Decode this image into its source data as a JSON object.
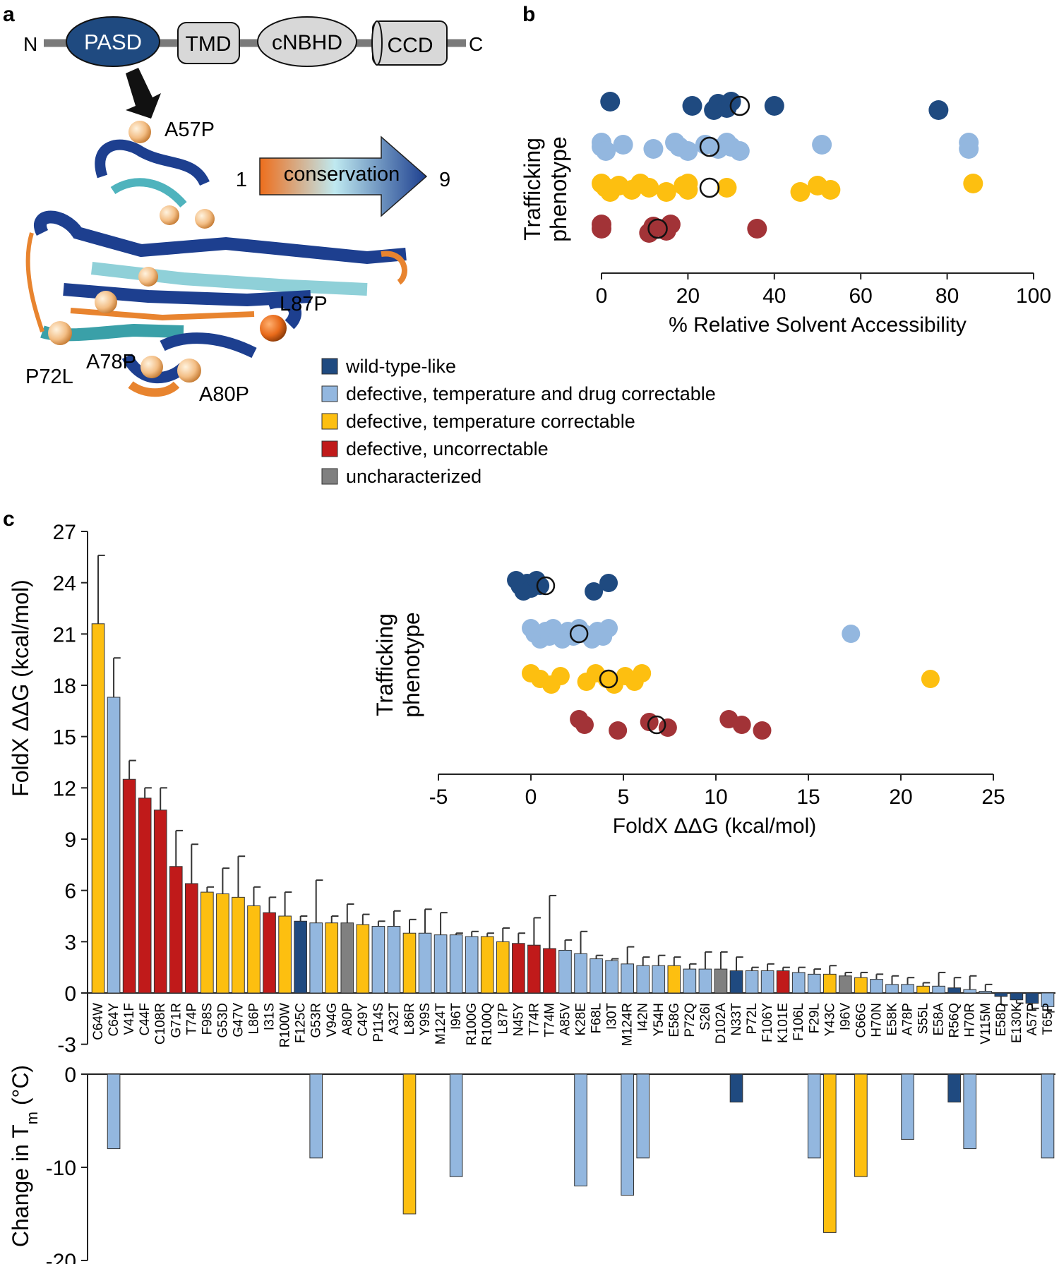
{
  "colors": {
    "wt": "#1f4a80",
    "dtc": "#93b7df",
    "tc": "#fdbf10",
    "unc": "#a23337",
    "uncorr_bar": "#c01a1a",
    "unchar": "#808080",
    "protein_fill": "#1d3f8f",
    "sphere": "#f4c089"
  },
  "panel_a": {
    "label": "a",
    "n_term": "N",
    "c_term": "C",
    "domains": [
      "PASD",
      "TMD",
      "cNBHD",
      "CCD"
    ],
    "sites": [
      "A57P",
      "L87P",
      "P72L",
      "A78P",
      "A80P"
    ],
    "scale_low": "1",
    "scale_high": "9",
    "scale_label": "conservation"
  },
  "panel_b": {
    "label": "b",
    "ylabel": [
      "Trafficking",
      "phenotype"
    ],
    "chart_data": {
      "type": "scatter",
      "xlabel": "% Relative Solvent Accessibility",
      "xlim": [
        0,
        100
      ],
      "xticks": [
        "0",
        "20",
        "40",
        "60",
        "80",
        "100"
      ],
      "series": [
        {
          "key": "wt",
          "values": [
            2,
            21,
            26,
            27,
            29,
            30,
            40,
            78
          ],
          "mean": 32
        },
        {
          "key": "dtc",
          "values": [
            0,
            0,
            1,
            5,
            12,
            17,
            18,
            20,
            24,
            27,
            29,
            30,
            32,
            51,
            85,
            85
          ],
          "mean": 25
        },
        {
          "key": "tc",
          "values": [
            0,
            1,
            2,
            4,
            7,
            9,
            11,
            15,
            19,
            20,
            20,
            29,
            46,
            50,
            53,
            86
          ],
          "mean": 25
        },
        {
          "key": "unc",
          "values": [
            0,
            0,
            11,
            12,
            15,
            16,
            36
          ],
          "mean": 13
        }
      ]
    }
  },
  "legend": [
    {
      "key": "wt",
      "label": "wild-type-like"
    },
    {
      "key": "dtc",
      "label": "defective, temperature and drug correctable"
    },
    {
      "key": "tc",
      "label": "defective, temperature correctable"
    },
    {
      "key": "uncorr_bar",
      "label": "defective, uncorrectable"
    },
    {
      "key": "unchar",
      "label": "uncharacterized"
    }
  ],
  "panel_c": {
    "label": "c",
    "ylabel": "FoldX ΔΔG (kcal/mol)",
    "yticks": [
      "27",
      "24",
      "21",
      "18",
      "15",
      "12",
      "9",
      "6",
      "3",
      "0",
      "-3"
    ],
    "tm_ylabel": "Change in T",
    "tm_sub": "m",
    "tm_unit": " (°C)",
    "tm_yticks": [
      "0",
      "-10",
      "-20"
    ],
    "chart_data": {
      "type": "bar",
      "ylim": [
        -3,
        27
      ],
      "tm_ylim": [
        -20,
        0
      ],
      "bars": [
        {
          "name": "C64W",
          "v": 21.6,
          "e": 4.0,
          "c": "tc"
        },
        {
          "name": "C64Y",
          "v": 17.3,
          "e": 2.3,
          "c": "dtc",
          "tm": -8
        },
        {
          "name": "V41F",
          "v": 12.5,
          "e": 1.1,
          "c": "uncorr_bar"
        },
        {
          "name": "C44F",
          "v": 11.4,
          "e": 0.6,
          "c": "uncorr_bar"
        },
        {
          "name": "C108R",
          "v": 10.7,
          "e": 1.3,
          "c": "uncorr_bar"
        },
        {
          "name": "G71R",
          "v": 7.4,
          "e": 2.1,
          "c": "uncorr_bar"
        },
        {
          "name": "T74P",
          "v": 6.4,
          "e": 2.3,
          "c": "uncorr_bar"
        },
        {
          "name": "F98S",
          "v": 5.9,
          "e": 0.3,
          "c": "tc"
        },
        {
          "name": "G53D",
          "v": 5.8,
          "e": 1.5,
          "c": "tc"
        },
        {
          "name": "G47V",
          "v": 5.6,
          "e": 2.4,
          "c": "tc"
        },
        {
          "name": "L86P",
          "v": 5.1,
          "e": 1.1,
          "c": "tc"
        },
        {
          "name": "I31S",
          "v": 4.7,
          "e": 0.9,
          "c": "uncorr_bar"
        },
        {
          "name": "R100W",
          "v": 4.5,
          "e": 1.4,
          "c": "tc"
        },
        {
          "name": "F125C",
          "v": 4.2,
          "e": 0.3,
          "c": "wt"
        },
        {
          "name": "G53R",
          "v": 4.1,
          "e": 2.5,
          "c": "dtc",
          "tm": -9
        },
        {
          "name": "V94G",
          "v": 4.1,
          "e": 0.4,
          "c": "tc"
        },
        {
          "name": "A80P",
          "v": 4.1,
          "e": 1.1,
          "c": "unchar"
        },
        {
          "name": "C49Y",
          "v": 4.0,
          "e": 0.6,
          "c": "tc"
        },
        {
          "name": "P114S",
          "v": 3.9,
          "e": 0.3,
          "c": "dtc"
        },
        {
          "name": "A32T",
          "v": 3.9,
          "e": 0.9,
          "c": "dtc"
        },
        {
          "name": "L86R",
          "v": 3.5,
          "e": 0.8,
          "c": "tc",
          "tm": -15
        },
        {
          "name": "Y99S",
          "v": 3.5,
          "e": 1.4,
          "c": "dtc"
        },
        {
          "name": "M124T",
          "v": 3.4,
          "e": 1.3,
          "c": "dtc"
        },
        {
          "name": "I96T",
          "v": 3.4,
          "e": 0.1,
          "c": "dtc",
          "tm": -11
        },
        {
          "name": "R100G",
          "v": 3.3,
          "e": 0.3,
          "c": "dtc"
        },
        {
          "name": "R100Q",
          "v": 3.3,
          "e": 0.2,
          "c": "tc"
        },
        {
          "name": "L87P",
          "v": 3.0,
          "e": 0.8,
          "c": "tc"
        },
        {
          "name": "N45Y",
          "v": 2.9,
          "e": 0.6,
          "c": "uncorr_bar"
        },
        {
          "name": "T74R",
          "v": 2.8,
          "e": 1.6,
          "c": "uncorr_bar"
        },
        {
          "name": "T74M",
          "v": 2.6,
          "e": 3.1,
          "c": "uncorr_bar"
        },
        {
          "name": "A85V",
          "v": 2.5,
          "e": 0.6,
          "c": "dtc"
        },
        {
          "name": "K28E",
          "v": 2.3,
          "e": 1.3,
          "c": "dtc",
          "tm": -12
        },
        {
          "name": "F68L",
          "v": 2.0,
          "e": 0.2,
          "c": "dtc"
        },
        {
          "name": "I30T",
          "v": 1.9,
          "e": 0.1,
          "c": "dtc"
        },
        {
          "name": "M124R",
          "v": 1.7,
          "e": 1.0,
          "c": "dtc",
          "tm": -13
        },
        {
          "name": "I42N",
          "v": 1.6,
          "e": 0.5,
          "c": "dtc",
          "tm": -9
        },
        {
          "name": "Y54H",
          "v": 1.6,
          "e": 0.6,
          "c": "dtc"
        },
        {
          "name": "E58G",
          "v": 1.6,
          "e": 0.5,
          "c": "tc"
        },
        {
          "name": "P72Q",
          "v": 1.4,
          "e": 0.3,
          "c": "dtc"
        },
        {
          "name": "S26I",
          "v": 1.4,
          "e": 1.0,
          "c": "dtc"
        },
        {
          "name": "D102A",
          "v": 1.4,
          "e": 1.0,
          "c": "unchar"
        },
        {
          "name": "N33T",
          "v": 1.3,
          "e": 0.8,
          "c": "wt",
          "tm": -3
        },
        {
          "name": "P72L",
          "v": 1.3,
          "e": 0.2,
          "c": "dtc"
        },
        {
          "name": "F106Y",
          "v": 1.3,
          "e": 0.4,
          "c": "dtc"
        },
        {
          "name": "K101E",
          "v": 1.3,
          "e": 0.2,
          "c": "uncorr_bar"
        },
        {
          "name": "F106L",
          "v": 1.2,
          "e": 0.3,
          "c": "dtc"
        },
        {
          "name": "F29L",
          "v": 1.1,
          "e": 0.3,
          "c": "dtc",
          "tm": -9
        },
        {
          "name": "Y43C",
          "v": 1.1,
          "e": 0.5,
          "c": "tc",
          "tm": -17
        },
        {
          "name": "I96V",
          "v": 1.0,
          "e": 0.2,
          "c": "unchar"
        },
        {
          "name": "C66G",
          "v": 0.9,
          "e": 0.3,
          "c": "tc",
          "tm": -11
        },
        {
          "name": "H70N",
          "v": 0.8,
          "e": 0.3,
          "c": "dtc"
        },
        {
          "name": "E58K",
          "v": 0.5,
          "e": 0.5,
          "c": "dtc"
        },
        {
          "name": "A78P",
          "v": 0.5,
          "e": 0.4,
          "c": "dtc",
          "tm": -7
        },
        {
          "name": "S55L",
          "v": 0.4,
          "e": 0.2,
          "c": "tc"
        },
        {
          "name": "E58A",
          "v": 0.4,
          "e": 0.8,
          "c": "dtc"
        },
        {
          "name": "R56Q",
          "v": 0.3,
          "e": 0.6,
          "c": "wt",
          "tm": -3
        },
        {
          "name": "H70R",
          "v": 0.2,
          "e": 0.8,
          "c": "dtc",
          "tm": -8
        },
        {
          "name": "V115M",
          "v": 0.1,
          "e": 0.4,
          "c": "dtc"
        },
        {
          "name": "E58D",
          "v": -0.2,
          "e": 0.5,
          "c": "wt"
        },
        {
          "name": "E130K",
          "v": -0.4,
          "e": 0.2,
          "c": "wt"
        },
        {
          "name": "A57P",
          "v": -0.6,
          "e": 0.3,
          "c": "wt"
        },
        {
          "name": "T65P",
          "v": -0.8,
          "e": 0.3,
          "c": "dtc",
          "tm": -9
        }
      ]
    },
    "inset": {
      "ylabel": [
        "Trafficking",
        "phenotype"
      ],
      "chart_data": {
        "type": "scatter",
        "xlabel": "FoldX ΔΔG (kcal/mol)",
        "xlim": [
          -5,
          25
        ],
        "xticks": [
          "-5",
          "0",
          "5",
          "10",
          "15",
          "20",
          "25"
        ],
        "series": [
          {
            "key": "wt",
            "values": [
              -0.8,
              -0.6,
              -0.4,
              -0.2,
              0,
              0.3,
              0.5,
              3.4,
              4.2
            ],
            "mean": 0.8
          },
          {
            "key": "dtc",
            "values": [
              0,
              0.2,
              0.5,
              0.8,
              1,
              1.2,
              1.5,
              1.7,
              2,
              2.3,
              2.6,
              2.9,
              3.3,
              3.6,
              3.9,
              4.2,
              17.3
            ],
            "mean": 2.6
          },
          {
            "key": "tc",
            "values": [
              0,
              0.5,
              1.1,
              1.6,
              3,
              3.5,
              4.1,
              4.5,
              5.1,
              5.6,
              6,
              21.6
            ],
            "mean": 4.2
          },
          {
            "key": "unc",
            "values": [
              2.6,
              2.9,
              4.7,
              6.4,
              7.4,
              10.7,
              11.4,
              12.5
            ],
            "mean": 6.8
          }
        ]
      }
    }
  }
}
